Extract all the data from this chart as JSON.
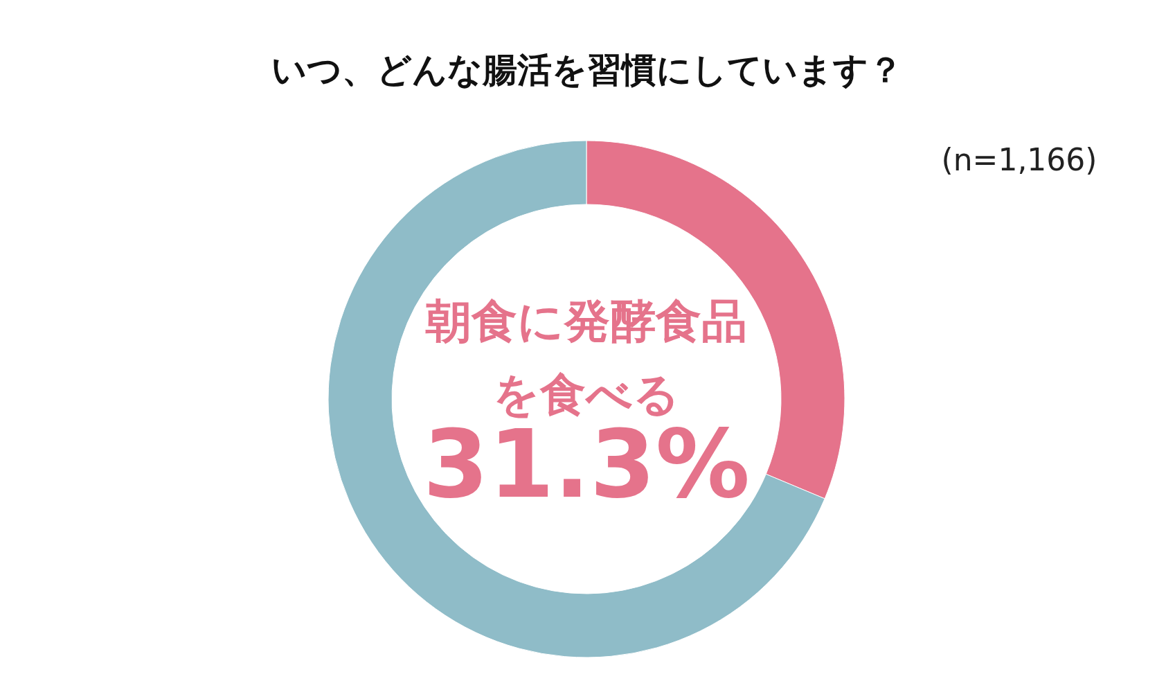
{
  "chart_data": {
    "type": "donut",
    "title": "いつ、どんな腸活を習慣にしています？",
    "annotations": [
      "(n=1,166)"
    ],
    "categories": [
      "朝食に発酵食品を食べる",
      null
    ],
    "values": [
      31.3,
      68.7
    ],
    "colors": [
      "#e5738b",
      "#8fbcc8"
    ],
    "value_labels": [
      "31.3%",
      null
    ]
  }
}
